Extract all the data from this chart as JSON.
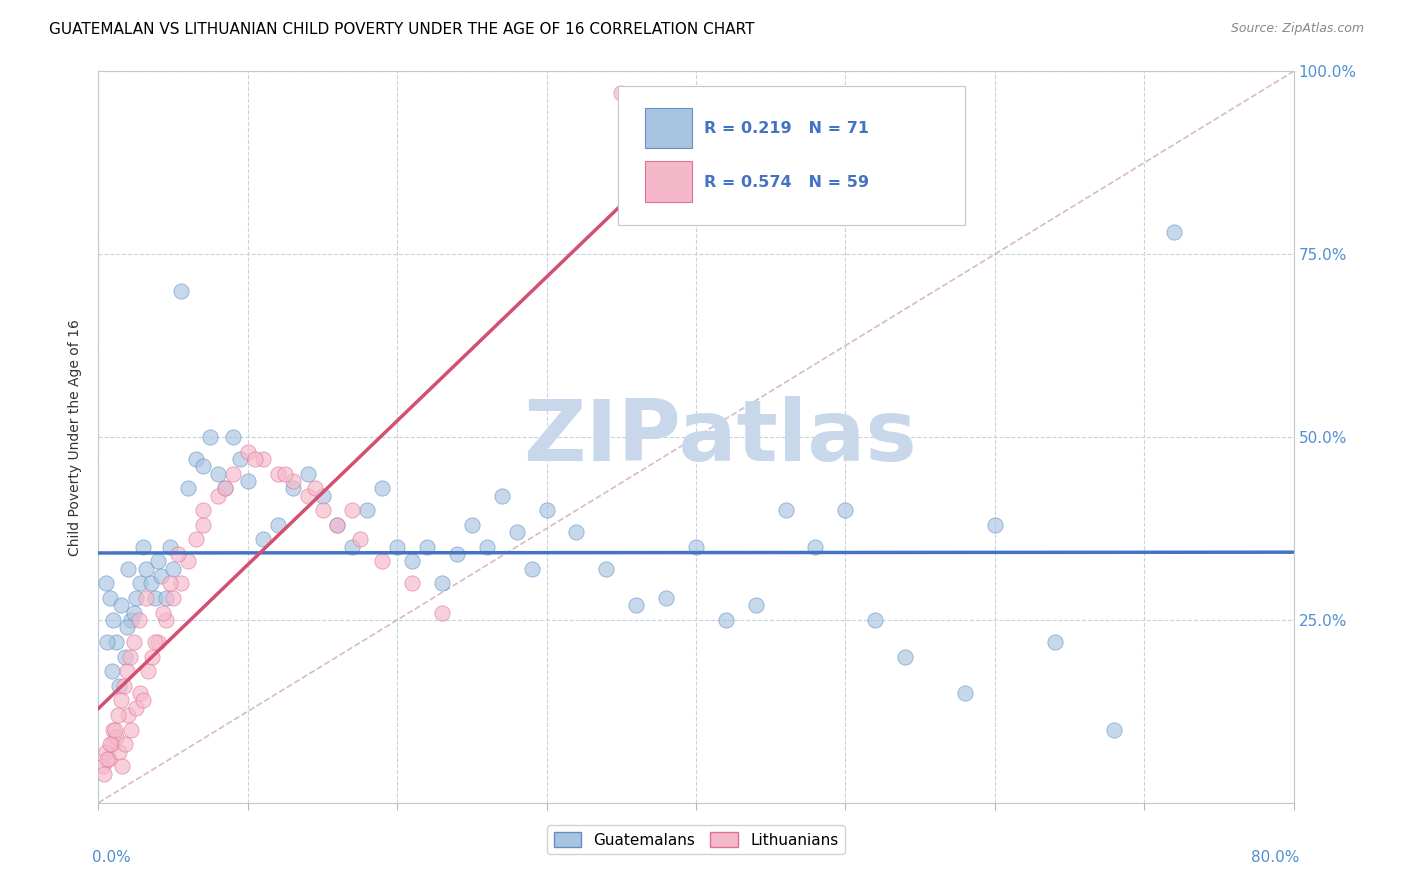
{
  "title": "GUATEMALAN VS LITHUANIAN CHILD POVERTY UNDER THE AGE OF 16 CORRELATION CHART",
  "source": "Source: ZipAtlas.com",
  "ylabel": "Child Poverty Under the Age of 16",
  "xlim": [
    0.0,
    0.8
  ],
  "ylim": [
    0.0,
    1.0
  ],
  "ytick_vals": [
    0.0,
    0.25,
    0.5,
    0.75,
    1.0
  ],
  "ytick_labels": [
    "",
    "25.0%",
    "50.0%",
    "75.0%",
    "100.0%"
  ],
  "r_guatemalan": 0.219,
  "n_guatemalan": 71,
  "r_lithuanian": 0.574,
  "n_lithuanian": 59,
  "color_guatemalan_face": "#a8c4e0",
  "color_guatemalan_edge": "#6090c8",
  "color_lithuanian_face": "#f4b8ca",
  "color_lithuanian_edge": "#e07090",
  "color_line_guatemalan": "#4472c4",
  "color_line_lithuanian": "#d45070",
  "color_ref_line": "#d0a8b8",
  "watermark_color": "#c8d8ea",
  "background_color": "#ffffff",
  "grid_color": "#c8d4dc",
  "title_fontsize": 11,
  "source_fontsize": 9,
  "scatter_size": 120,
  "scatter_alpha": 0.65,
  "guatemalan_x": [
    0.005,
    0.008,
    0.01,
    0.012,
    0.015,
    0.018,
    0.02,
    0.022,
    0.025,
    0.028,
    0.03,
    0.032,
    0.035,
    0.038,
    0.04,
    0.042,
    0.045,
    0.048,
    0.05,
    0.055,
    0.06,
    0.065,
    0.07,
    0.075,
    0.08,
    0.085,
    0.09,
    0.095,
    0.1,
    0.11,
    0.12,
    0.13,
    0.14,
    0.15,
    0.16,
    0.17,
    0.18,
    0.19,
    0.2,
    0.21,
    0.22,
    0.23,
    0.24,
    0.25,
    0.26,
    0.27,
    0.28,
    0.29,
    0.3,
    0.32,
    0.34,
    0.36,
    0.38,
    0.4,
    0.42,
    0.44,
    0.46,
    0.48,
    0.5,
    0.52,
    0.54,
    0.58,
    0.6,
    0.64,
    0.68,
    0.72,
    0.006,
    0.009,
    0.014,
    0.019,
    0.024
  ],
  "guatemalan_y": [
    0.3,
    0.28,
    0.25,
    0.22,
    0.27,
    0.2,
    0.32,
    0.25,
    0.28,
    0.3,
    0.35,
    0.32,
    0.3,
    0.28,
    0.33,
    0.31,
    0.28,
    0.35,
    0.32,
    0.7,
    0.43,
    0.47,
    0.46,
    0.5,
    0.45,
    0.43,
    0.5,
    0.47,
    0.44,
    0.36,
    0.38,
    0.43,
    0.45,
    0.42,
    0.38,
    0.35,
    0.4,
    0.43,
    0.35,
    0.33,
    0.35,
    0.3,
    0.34,
    0.38,
    0.35,
    0.42,
    0.37,
    0.32,
    0.4,
    0.37,
    0.32,
    0.27,
    0.28,
    0.35,
    0.25,
    0.27,
    0.4,
    0.35,
    0.4,
    0.25,
    0.2,
    0.15,
    0.38,
    0.22,
    0.1,
    0.78,
    0.22,
    0.18,
    0.16,
    0.24,
    0.26
  ],
  "lithuanian_x": [
    0.003,
    0.005,
    0.007,
    0.009,
    0.01,
    0.012,
    0.014,
    0.016,
    0.018,
    0.02,
    0.022,
    0.025,
    0.028,
    0.03,
    0.033,
    0.036,
    0.04,
    0.045,
    0.05,
    0.055,
    0.06,
    0.065,
    0.07,
    0.08,
    0.09,
    0.1,
    0.11,
    0.12,
    0.13,
    0.14,
    0.15,
    0.16,
    0.175,
    0.19,
    0.21,
    0.23,
    0.004,
    0.006,
    0.008,
    0.011,
    0.013,
    0.015,
    0.017,
    0.019,
    0.021,
    0.024,
    0.027,
    0.032,
    0.038,
    0.043,
    0.048,
    0.053,
    0.07,
    0.085,
    0.105,
    0.125,
    0.145,
    0.17,
    0.35
  ],
  "lithuanian_y": [
    0.05,
    0.07,
    0.06,
    0.08,
    0.1,
    0.09,
    0.07,
    0.05,
    0.08,
    0.12,
    0.1,
    0.13,
    0.15,
    0.14,
    0.18,
    0.2,
    0.22,
    0.25,
    0.28,
    0.3,
    0.33,
    0.36,
    0.38,
    0.42,
    0.45,
    0.48,
    0.47,
    0.45,
    0.44,
    0.42,
    0.4,
    0.38,
    0.36,
    0.33,
    0.3,
    0.26,
    0.04,
    0.06,
    0.08,
    0.1,
    0.12,
    0.14,
    0.16,
    0.18,
    0.2,
    0.22,
    0.25,
    0.28,
    0.22,
    0.26,
    0.3,
    0.34,
    0.4,
    0.43,
    0.47,
    0.45,
    0.43,
    0.4,
    0.97
  ]
}
